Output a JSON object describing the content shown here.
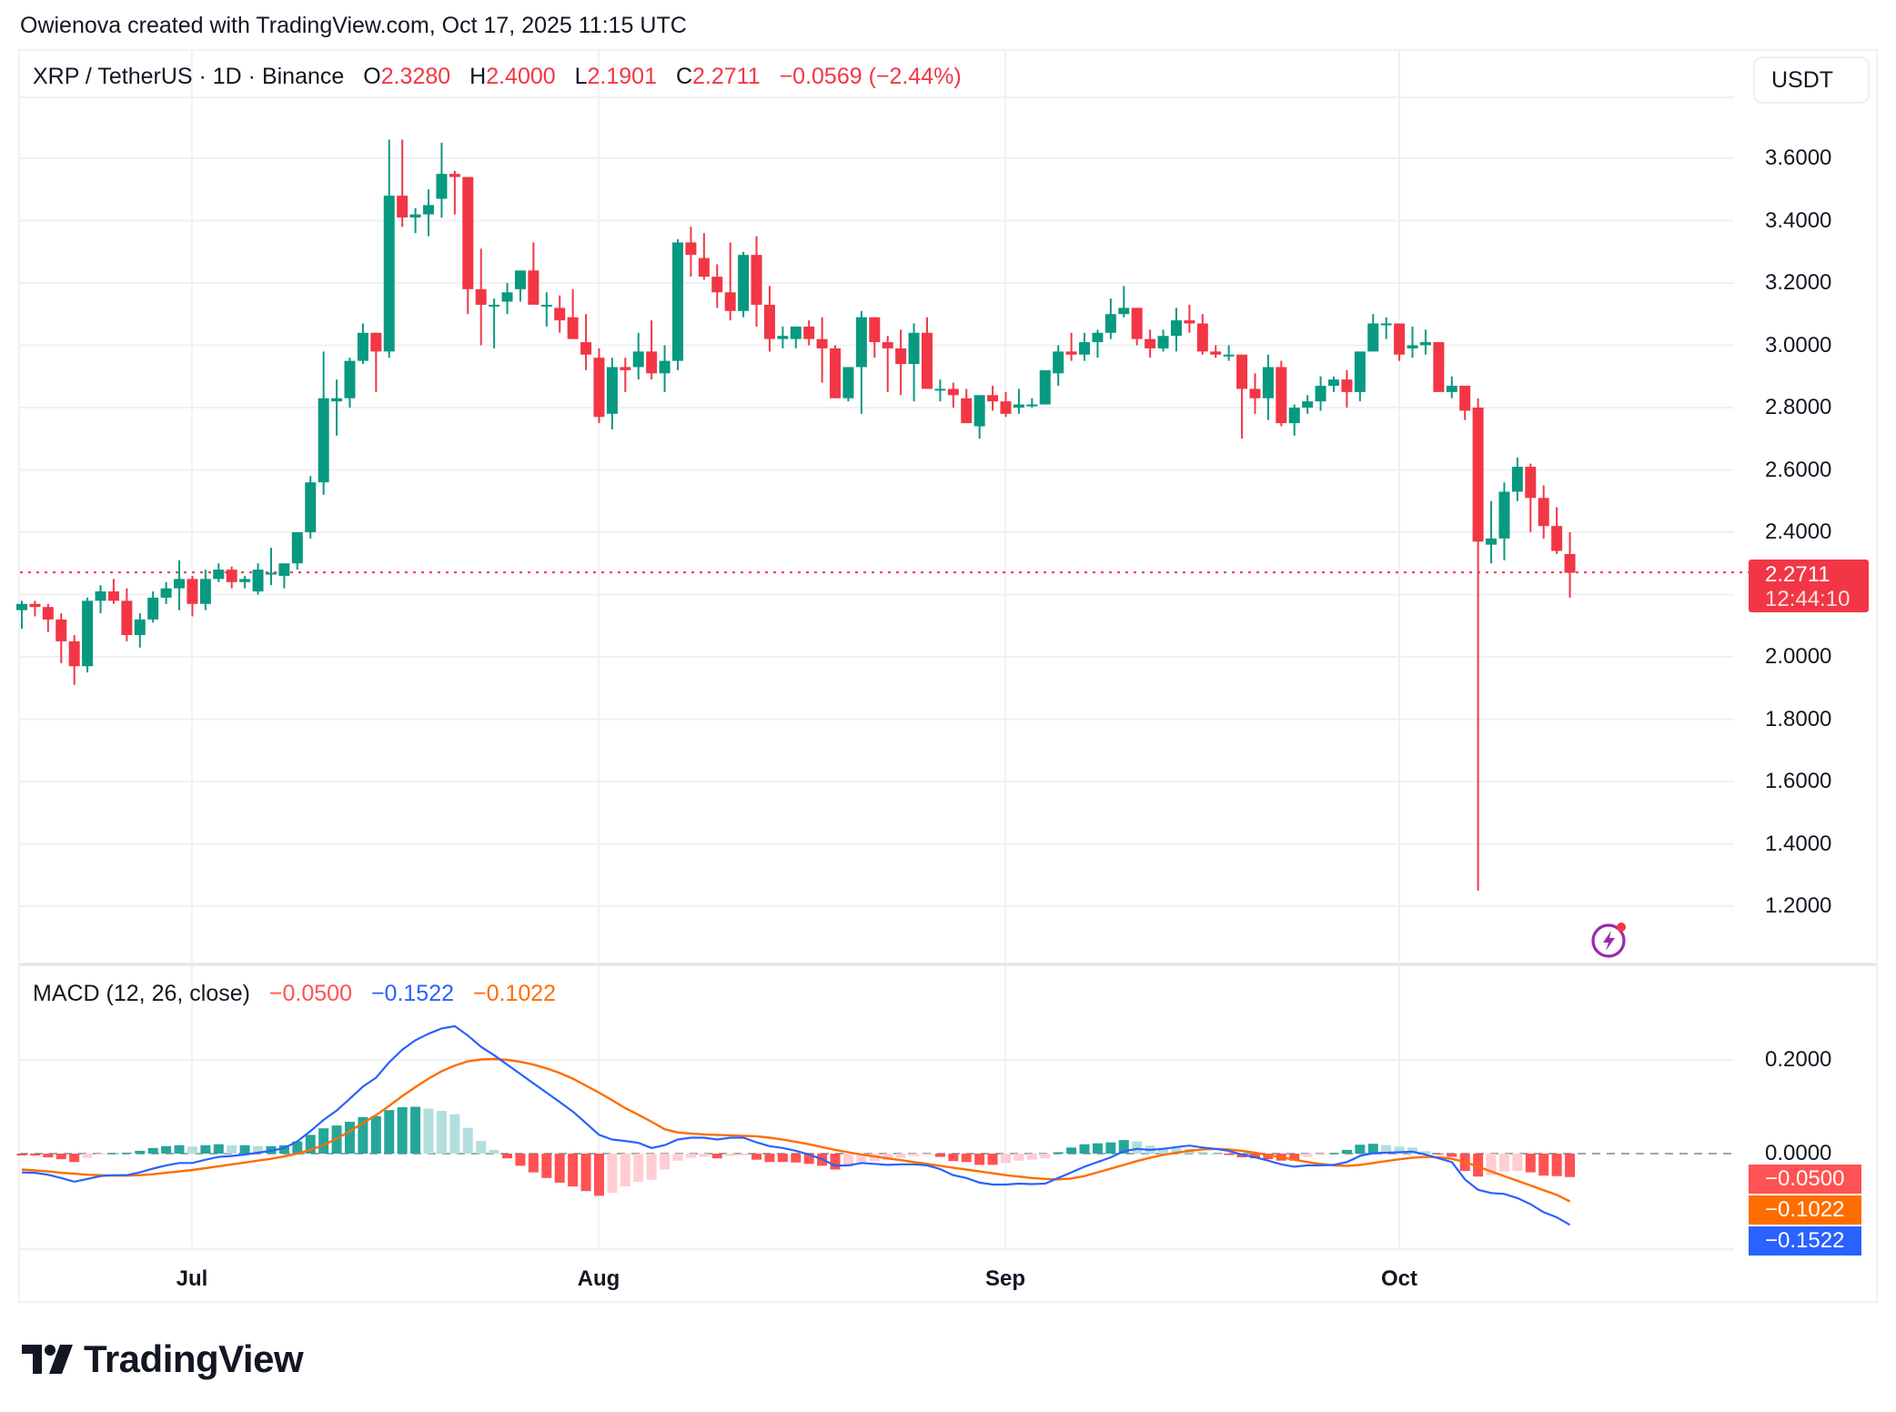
{
  "credit": "Owienova created with TradingView.com, Oct 17, 2025 11:15 UTC",
  "legend": {
    "symbol": "XRP / TetherUS · 1D · Binance",
    "o_label": "O",
    "o_value": "2.3280",
    "h_label": "H",
    "h_value": "2.4000",
    "l_label": "L",
    "l_value": "2.1901",
    "c_label": "C",
    "c_value": "2.2711",
    "change": "−0.0569 (−2.44%)"
  },
  "currency_button": "USDT",
  "price_axis": [
    "3.6000",
    "3.4000",
    "3.2000",
    "3.0000",
    "2.8000",
    "2.6000",
    "2.4000",
    "2.0000",
    "1.8000",
    "1.6000",
    "1.4000",
    "1.2000"
  ],
  "last_price": {
    "value": "2.2711",
    "countdown": "12:44:10"
  },
  "macd_legend": {
    "title": "MACD (12, 26, close)",
    "histogram": "−0.0500",
    "macd": "−0.1522",
    "signal": "−0.1022"
  },
  "macd_axis": [
    "0.2000",
    "0.0000"
  ],
  "macd_tags": {
    "histogram": "−0.0500",
    "signal": "−0.1022",
    "macd": "−0.1522"
  },
  "time_axis": [
    "Jul",
    "Aug",
    "Sep",
    "Oct"
  ],
  "brand": "TradingView",
  "colors": {
    "up": "#089981",
    "down": "#F23645",
    "hist_up_strong": "#26A69A",
    "hist_up_weak": "#B2DFDB",
    "hist_down_strong": "#FF5252",
    "hist_down_weak": "#FFCDD2",
    "macd": "#2962FF",
    "signal": "#FF6D00",
    "grid": "#f0f1f3"
  },
  "chart_data": [
    {
      "type": "candlestick",
      "title": "XRP / TetherUS · 1D · Binance",
      "xlabel": "",
      "ylabel": "USDT",
      "ylim": [
        1.08,
        3.78
      ],
      "x_ticks": [
        "Jul",
        "Aug",
        "Sep",
        "Oct"
      ],
      "y_ticks": [
        1.2,
        1.4,
        1.6,
        1.8,
        2.0,
        2.2,
        2.4,
        2.6,
        2.8,
        3.0,
        3.2,
        3.4,
        3.6
      ],
      "grid": true,
      "start_date": "Jun 18",
      "end_date": "Oct 17",
      "last_close": 2.2711,
      "ohlc": [
        [
          2.15,
          2.18,
          2.09,
          2.17
        ],
        [
          2.17,
          2.18,
          2.13,
          2.16
        ],
        [
          2.16,
          2.17,
          2.08,
          2.12
        ],
        [
          2.12,
          2.14,
          1.98,
          2.05
        ],
        [
          2.05,
          2.07,
          1.91,
          1.97
        ],
        [
          1.97,
          2.19,
          1.95,
          2.18
        ],
        [
          2.18,
          2.23,
          2.14,
          2.21
        ],
        [
          2.21,
          2.25,
          2.17,
          2.18
        ],
        [
          2.18,
          2.22,
          2.05,
          2.07
        ],
        [
          2.07,
          2.14,
          2.03,
          2.12
        ],
        [
          2.12,
          2.21,
          2.11,
          2.19
        ],
        [
          2.19,
          2.24,
          2.17,
          2.22
        ],
        [
          2.22,
          2.31,
          2.15,
          2.25
        ],
        [
          2.25,
          2.26,
          2.13,
          2.17
        ],
        [
          2.17,
          2.28,
          2.15,
          2.25
        ],
        [
          2.25,
          2.3,
          2.24,
          2.28
        ],
        [
          2.28,
          2.29,
          2.22,
          2.24
        ],
        [
          2.24,
          2.26,
          2.22,
          2.25
        ],
        [
          2.21,
          2.3,
          2.2,
          2.28
        ],
        [
          2.27,
          2.35,
          2.23,
          2.27
        ],
        [
          2.26,
          2.3,
          2.22,
          2.3
        ],
        [
          2.3,
          2.4,
          2.28,
          2.4
        ],
        [
          2.4,
          2.58,
          2.38,
          2.56
        ],
        [
          2.56,
          2.98,
          2.52,
          2.83
        ],
        [
          2.82,
          2.89,
          2.71,
          2.83
        ],
        [
          2.83,
          2.96,
          2.8,
          2.95
        ],
        [
          2.95,
          3.07,
          2.94,
          3.04
        ],
        [
          3.04,
          3.04,
          2.85,
          2.98
        ],
        [
          2.98,
          3.66,
          2.96,
          3.48
        ],
        [
          3.48,
          3.66,
          3.38,
          3.41
        ],
        [
          3.41,
          3.44,
          3.36,
          3.42
        ],
        [
          3.42,
          3.5,
          3.35,
          3.45
        ],
        [
          3.47,
          3.65,
          3.41,
          3.55
        ],
        [
          3.55,
          3.56,
          3.42,
          3.54
        ],
        [
          3.54,
          3.54,
          3.1,
          3.18
        ],
        [
          3.18,
          3.31,
          3.0,
          3.13
        ],
        [
          3.13,
          3.15,
          2.99,
          3.13
        ],
        [
          3.14,
          3.2,
          3.1,
          3.17
        ],
        [
          3.18,
          3.23,
          3.14,
          3.24
        ],
        [
          3.24,
          3.33,
          3.14,
          3.13
        ],
        [
          3.13,
          3.17,
          3.06,
          3.13
        ],
        [
          3.12,
          3.16,
          3.04,
          3.08
        ],
        [
          3.09,
          3.18,
          3.03,
          3.02
        ],
        [
          3.01,
          3.1,
          2.92,
          2.97
        ],
        [
          2.96,
          2.99,
          2.75,
          2.77
        ],
        [
          2.78,
          2.96,
          2.73,
          2.93
        ],
        [
          2.93,
          2.96,
          2.85,
          2.92
        ],
        [
          2.93,
          3.04,
          2.89,
          2.98
        ],
        [
          2.98,
          3.08,
          2.89,
          2.91
        ],
        [
          2.91,
          3.0,
          2.85,
          2.95
        ],
        [
          2.95,
          3.34,
          2.92,
          3.33
        ],
        [
          3.33,
          3.38,
          3.22,
          3.29
        ],
        [
          3.28,
          3.36,
          3.21,
          3.22
        ],
        [
          3.22,
          3.26,
          3.12,
          3.17
        ],
        [
          3.17,
          3.33,
          3.08,
          3.11
        ],
        [
          3.11,
          3.3,
          3.09,
          3.29
        ],
        [
          3.29,
          3.35,
          3.06,
          3.13
        ],
        [
          3.13,
          3.19,
          2.98,
          3.02
        ],
        [
          3.02,
          3.06,
          2.99,
          3.03
        ],
        [
          3.02,
          3.06,
          2.99,
          3.06
        ],
        [
          3.06,
          3.08,
          3.0,
          3.02
        ],
        [
          3.02,
          3.09,
          2.88,
          2.99
        ],
        [
          2.99,
          3.0,
          2.83,
          2.83
        ],
        [
          2.83,
          2.93,
          2.82,
          2.93
        ],
        [
          2.93,
          3.11,
          2.78,
          3.09
        ],
        [
          3.09,
          3.09,
          2.96,
          3.01
        ],
        [
          3.01,
          3.03,
          2.85,
          2.99
        ],
        [
          2.99,
          3.05,
          2.84,
          2.94
        ],
        [
          2.94,
          3.07,
          2.82,
          3.04
        ],
        [
          3.04,
          3.09,
          2.92,
          2.86
        ],
        [
          2.86,
          2.89,
          2.82,
          2.86
        ],
        [
          2.86,
          2.88,
          2.8,
          2.84
        ],
        [
          2.83,
          2.86,
          2.76,
          2.75
        ],
        [
          2.74,
          2.81,
          2.7,
          2.84
        ],
        [
          2.84,
          2.87,
          2.79,
          2.82
        ],
        [
          2.82,
          2.85,
          2.77,
          2.78
        ],
        [
          2.8,
          2.86,
          2.78,
          2.81
        ],
        [
          2.81,
          2.83,
          2.8,
          2.81
        ],
        [
          2.81,
          2.91,
          2.81,
          2.92
        ],
        [
          2.91,
          3.0,
          2.87,
          2.98
        ],
        [
          2.98,
          3.04,
          2.95,
          2.97
        ],
        [
          2.97,
          3.04,
          2.95,
          3.01
        ],
        [
          3.01,
          3.05,
          2.96,
          3.04
        ],
        [
          3.04,
          3.15,
          3.02,
          3.1
        ],
        [
          3.1,
          3.19,
          3.09,
          3.12
        ],
        [
          3.12,
          3.12,
          3.0,
          3.02
        ],
        [
          3.02,
          3.05,
          2.96,
          2.99
        ],
        [
          2.99,
          3.05,
          2.98,
          3.03
        ],
        [
          3.03,
          3.12,
          2.98,
          3.08
        ],
        [
          3.08,
          3.13,
          3.04,
          3.07
        ],
        [
          3.07,
          3.1,
          2.97,
          2.98
        ],
        [
          2.98,
          3.0,
          2.96,
          2.97
        ],
        [
          2.97,
          3.0,
          2.95,
          2.97
        ],
        [
          2.97,
          2.97,
          2.7,
          2.86
        ],
        [
          2.86,
          2.91,
          2.78,
          2.83
        ],
        [
          2.83,
          2.97,
          2.76,
          2.93
        ],
        [
          2.93,
          2.95,
          2.74,
          2.75
        ],
        [
          2.75,
          2.81,
          2.71,
          2.8
        ],
        [
          2.8,
          2.84,
          2.78,
          2.82
        ],
        [
          2.82,
          2.9,
          2.79,
          2.87
        ],
        [
          2.87,
          2.9,
          2.85,
          2.89
        ],
        [
          2.89,
          2.92,
          2.8,
          2.85
        ],
        [
          2.85,
          2.97,
          2.82,
          2.98
        ],
        [
          2.98,
          3.1,
          2.98,
          3.07
        ],
        [
          3.07,
          3.09,
          3.02,
          3.07
        ],
        [
          3.07,
          3.06,
          2.95,
          2.97
        ],
        [
          2.99,
          3.06,
          2.96,
          3.0
        ],
        [
          3.0,
          3.05,
          2.97,
          3.01
        ],
        [
          3.01,
          3.01,
          2.86,
          2.85
        ],
        [
          2.85,
          2.9,
          2.83,
          2.87
        ],
        [
          2.87,
          2.87,
          2.76,
          2.79
        ],
        [
          2.8,
          2.83,
          1.25,
          2.37
        ],
        [
          2.36,
          2.5,
          2.3,
          2.38
        ],
        [
          2.38,
          2.56,
          2.31,
          2.53
        ],
        [
          2.53,
          2.64,
          2.5,
          2.61
        ],
        [
          2.61,
          2.62,
          2.4,
          2.51
        ],
        [
          2.51,
          2.55,
          2.38,
          2.42
        ],
        [
          2.42,
          2.48,
          2.33,
          2.34
        ],
        [
          2.33,
          2.4,
          2.19,
          2.27
        ]
      ]
    },
    {
      "type": "macd",
      "title": "MACD (12, 26, close)",
      "ylim": [
        -0.2,
        0.34
      ],
      "y_ticks": [
        0.0,
        0.2
      ],
      "last": {
        "histogram": -0.05,
        "macd": -0.1522,
        "signal": -0.1022
      },
      "macd_line": [
        -0.04,
        -0.041,
        -0.045,
        -0.052,
        -0.06,
        -0.054,
        -0.048,
        -0.046,
        -0.046,
        -0.04,
        -0.032,
        -0.025,
        -0.02,
        -0.02,
        -0.013,
        -0.007,
        -0.005,
        -0.002,
        0.002,
        0.006,
        0.012,
        0.026,
        0.048,
        0.072,
        0.092,
        0.117,
        0.143,
        0.162,
        0.195,
        0.222,
        0.242,
        0.256,
        0.267,
        0.272,
        0.252,
        0.228,
        0.21,
        0.19,
        0.17,
        0.15,
        0.13,
        0.11,
        0.09,
        0.065,
        0.04,
        0.03,
        0.027,
        0.023,
        0.012,
        0.018,
        0.03,
        0.034,
        0.034,
        0.03,
        0.034,
        0.034,
        0.024,
        0.016,
        0.012,
        0.006,
        -0.002,
        -0.012,
        -0.026,
        -0.025,
        -0.02,
        -0.022,
        -0.024,
        -0.023,
        -0.023,
        -0.025,
        -0.033,
        -0.046,
        -0.052,
        -0.062,
        -0.066,
        -0.066,
        -0.064,
        -0.065,
        -0.064,
        -0.052,
        -0.04,
        -0.028,
        -0.018,
        -0.008,
        0.005,
        0.01,
        0.008,
        0.01,
        0.014,
        0.017,
        0.013,
        0.01,
        0.006,
        -0.002,
        -0.008,
        -0.015,
        -0.023,
        -0.028,
        -0.025,
        -0.025,
        -0.024,
        -0.018,
        -0.005,
        0.001,
        0.002,
        0.003,
        0.004,
        -0.002,
        -0.01,
        -0.018,
        -0.055,
        -0.077,
        -0.084,
        -0.086,
        -0.095,
        -0.108,
        -0.125,
        -0.136,
        -0.152
      ],
      "signal_line": [
        -0.034,
        -0.036,
        -0.038,
        -0.041,
        -0.043,
        -0.045,
        -0.046,
        -0.047,
        -0.047,
        -0.046,
        -0.044,
        -0.041,
        -0.038,
        -0.035,
        -0.031,
        -0.027,
        -0.023,
        -0.019,
        -0.015,
        -0.011,
        -0.006,
        0.0,
        0.008,
        0.018,
        0.032,
        0.048,
        0.065,
        0.082,
        0.102,
        0.123,
        0.142,
        0.16,
        0.176,
        0.188,
        0.197,
        0.201,
        0.202,
        0.2,
        0.196,
        0.19,
        0.182,
        0.172,
        0.16,
        0.145,
        0.13,
        0.114,
        0.097,
        0.083,
        0.068,
        0.052,
        0.045,
        0.043,
        0.041,
        0.04,
        0.039,
        0.038,
        0.037,
        0.034,
        0.03,
        0.025,
        0.02,
        0.014,
        0.008,
        0.003,
        -0.002,
        -0.006,
        -0.01,
        -0.014,
        -0.018,
        -0.022,
        -0.026,
        -0.03,
        -0.034,
        -0.038,
        -0.042,
        -0.046,
        -0.049,
        -0.052,
        -0.054,
        -0.055,
        -0.053,
        -0.048,
        -0.04,
        -0.032,
        -0.024,
        -0.016,
        -0.009,
        -0.003,
        0.002,
        0.006,
        0.009,
        0.01,
        0.009,
        0.006,
        0.002,
        -0.003,
        -0.008,
        -0.013,
        -0.018,
        -0.022,
        -0.025,
        -0.026,
        -0.024,
        -0.02,
        -0.016,
        -0.012,
        -0.009,
        -0.007,
        -0.008,
        -0.011,
        -0.018,
        -0.028,
        -0.038,
        -0.048,
        -0.058,
        -0.068,
        -0.078,
        -0.088,
        -0.102
      ],
      "histogram": [
        -0.004,
        -0.004,
        -0.008,
        -0.012,
        -0.018,
        -0.009,
        -0.002,
        0.001,
        0.002,
        0.006,
        0.012,
        0.016,
        0.018,
        0.015,
        0.018,
        0.02,
        0.018,
        0.018,
        0.016,
        0.016,
        0.018,
        0.026,
        0.04,
        0.054,
        0.06,
        0.068,
        0.078,
        0.08,
        0.093,
        0.099,
        0.1,
        0.096,
        0.091,
        0.084,
        0.055,
        0.027,
        0.008,
        -0.01,
        -0.026,
        -0.04,
        -0.052,
        -0.062,
        -0.07,
        -0.08,
        -0.09,
        -0.084,
        -0.07,
        -0.06,
        -0.056,
        -0.034,
        -0.015,
        -0.009,
        -0.007,
        -0.01,
        -0.005,
        -0.004,
        -0.013,
        -0.018,
        -0.018,
        -0.019,
        -0.022,
        -0.026,
        -0.034,
        -0.028,
        -0.018,
        -0.016,
        -0.014,
        -0.009,
        -0.005,
        -0.003,
        -0.007,
        -0.016,
        -0.018,
        -0.024,
        -0.024,
        -0.02,
        -0.015,
        -0.013,
        -0.01,
        0.003,
        0.013,
        0.02,
        0.022,
        0.024,
        0.029,
        0.026,
        0.017,
        0.013,
        0.012,
        0.011,
        0.004,
        0.0,
        -0.003,
        -0.008,
        -0.01,
        -0.012,
        -0.015,
        -0.015,
        -0.007,
        -0.003,
        0.001,
        0.008,
        0.019,
        0.021,
        0.018,
        0.015,
        0.013,
        0.005,
        -0.002,
        -0.007,
        -0.037,
        -0.049,
        -0.046,
        -0.038,
        -0.037,
        -0.04,
        -0.047,
        -0.048,
        -0.05
      ]
    }
  ]
}
